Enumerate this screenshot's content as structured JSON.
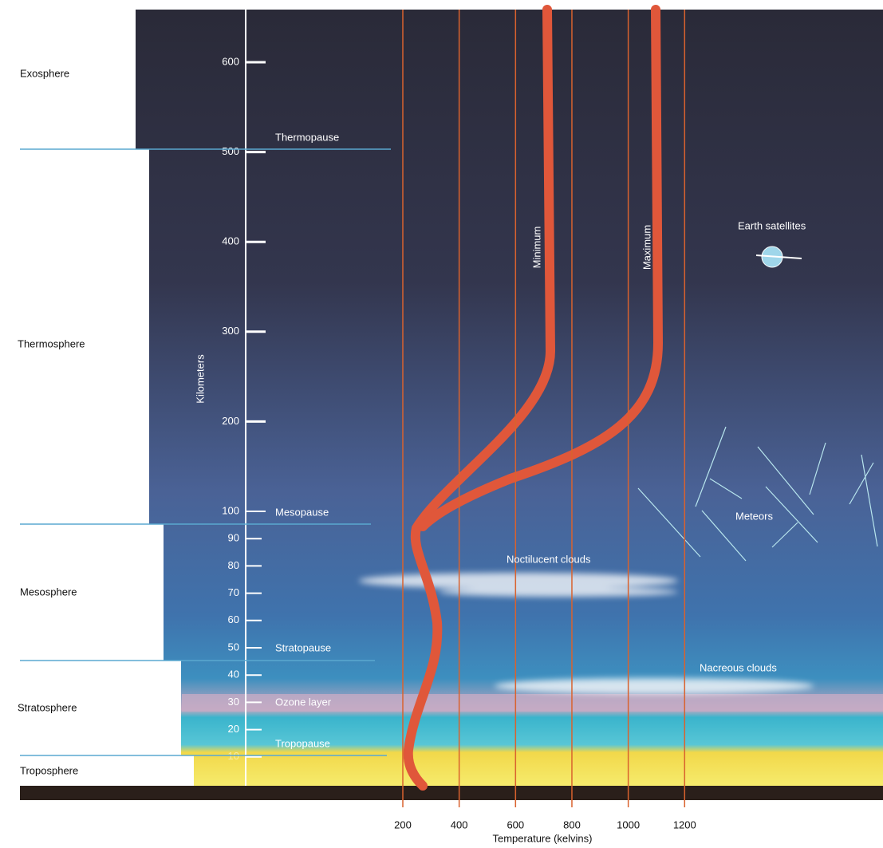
{
  "layers": [
    "Exosphere",
    "Thermosphere",
    "Mesosphere",
    "Stratosphere",
    "Troposphere"
  ],
  "boundaries": [
    "Thermopause",
    "Mesopause",
    "Stratopause",
    "Tropopause"
  ],
  "altitude_axis": {
    "label": "Kilometers",
    "ticks": [
      600,
      500,
      400,
      300,
      200,
      100,
      90,
      80,
      70,
      60,
      50,
      40,
      30,
      20,
      10
    ]
  },
  "temperature_axis": {
    "label": "Temperature (kelvins)",
    "ticks": [
      200,
      400,
      600,
      800,
      1000,
      1200
    ]
  },
  "curves": [
    "Minimum",
    "Maximum"
  ],
  "annotations": [
    "Ozone layer",
    "Noctilucent clouds",
    "Nacreous clouds",
    "Meteors",
    "Earth satellites"
  ]
}
